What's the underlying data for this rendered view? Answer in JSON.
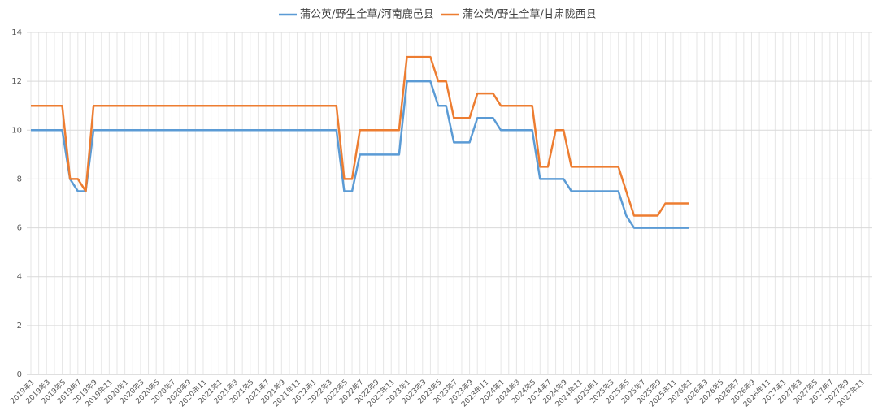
{
  "chart_data": {
    "type": "line",
    "categories": [
      "2019年1",
      null,
      "2019年3",
      null,
      "2019年5",
      null,
      "2019年7",
      null,
      "2019年9",
      null,
      "2019年11",
      null,
      "2020年1",
      null,
      "2020年3",
      null,
      "2020年5",
      null,
      "2020年7",
      null,
      "2020年9",
      null,
      "2020年11",
      null,
      "2021年1",
      null,
      "2021年3",
      null,
      "2021年5",
      null,
      "2021年7",
      null,
      "2021年9",
      null,
      "2021年11",
      null,
      "2022年1",
      null,
      "2022年3",
      null,
      "2022年5",
      null,
      "2022年7",
      null,
      "2022年9",
      null,
      "2022年11",
      null,
      "2023年1",
      null,
      "2023年3",
      null,
      "2023年5",
      null,
      "2023年7",
      null,
      "2023年9",
      null,
      "2023年11",
      null,
      "2024年1",
      null,
      "2024年3",
      null,
      "2024年5",
      null,
      "2024年7",
      null,
      "2024年9",
      null,
      "2024年11",
      null,
      "2025年1",
      null,
      "2025年3",
      null,
      "2025年5",
      null,
      "2025年7",
      null,
      "2025年9",
      null,
      "2025年11",
      null,
      "2026年1",
      null,
      "2026年3",
      null,
      "2026年5",
      null,
      "2026年7",
      null,
      "2026年9",
      null,
      "2026年11",
      null,
      "2027年1",
      null,
      "2027年3",
      null,
      "2027年5",
      null,
      "2027年7",
      null,
      "2027年9",
      null,
      "2027年11",
      null
    ],
    "series": [
      {
        "name": "蒲公英/野生全草/河南鹿邑县",
        "color": "#5b9bd5",
        "values": [
          10,
          10,
          10,
          10,
          10,
          8,
          7.5,
          7.5,
          10,
          10,
          10,
          10,
          10,
          10,
          10,
          10,
          10,
          10,
          10,
          10,
          10,
          10,
          10,
          10,
          10,
          10,
          10,
          10,
          10,
          10,
          10,
          10,
          10,
          10,
          10,
          10,
          10,
          10,
          10,
          10,
          7.5,
          7.5,
          9,
          9,
          9,
          9,
          9,
          9,
          12,
          12,
          12,
          12,
          11,
          11,
          9.5,
          9.5,
          9.5,
          10.5,
          10.5,
          10.5,
          10,
          10,
          10,
          10,
          10,
          8,
          8,
          8,
          8,
          7.5,
          7.5,
          7.5,
          7.5,
          7.5,
          7.5,
          7.5,
          6.5,
          6,
          6,
          6,
          6,
          6,
          6,
          6,
          6,
          null,
          null,
          null,
          null,
          null,
          null,
          null,
          null,
          null,
          null,
          null,
          null,
          null,
          null,
          null,
          null,
          null,
          null,
          null,
          null,
          null,
          null,
          null
        ]
      },
      {
        "name": "蒲公英/野生全草/甘肃陇西县",
        "color": "#ed7d31",
        "values": [
          11,
          11,
          11,
          11,
          11,
          8,
          8,
          7.5,
          11,
          11,
          11,
          11,
          11,
          11,
          11,
          11,
          11,
          11,
          11,
          11,
          11,
          11,
          11,
          11,
          11,
          11,
          11,
          11,
          11,
          11,
          11,
          11,
          11,
          11,
          11,
          11,
          11,
          11,
          11,
          11,
          8,
          8,
          10,
          10,
          10,
          10,
          10,
          10,
          13,
          13,
          13,
          13,
          12,
          12,
          10.5,
          10.5,
          10.5,
          11.5,
          11.5,
          11.5,
          11,
          11,
          11,
          11,
          11,
          8.5,
          8.5,
          10,
          10,
          8.5,
          8.5,
          8.5,
          8.5,
          8.5,
          8.5,
          8.5,
          7.5,
          6.5,
          6.5,
          6.5,
          6.5,
          7,
          7,
          7,
          7,
          null,
          null,
          null,
          null,
          null,
          null,
          null,
          null,
          null,
          null,
          null,
          null,
          null,
          null,
          null,
          null,
          null,
          null,
          null,
          null,
          null,
          null,
          null
        ]
      }
    ],
    "ylim": [
      0,
      14
    ],
    "yticks": [
      0,
      2,
      4,
      6,
      8,
      10,
      12,
      14
    ],
    "grid": true,
    "legend": "top"
  }
}
